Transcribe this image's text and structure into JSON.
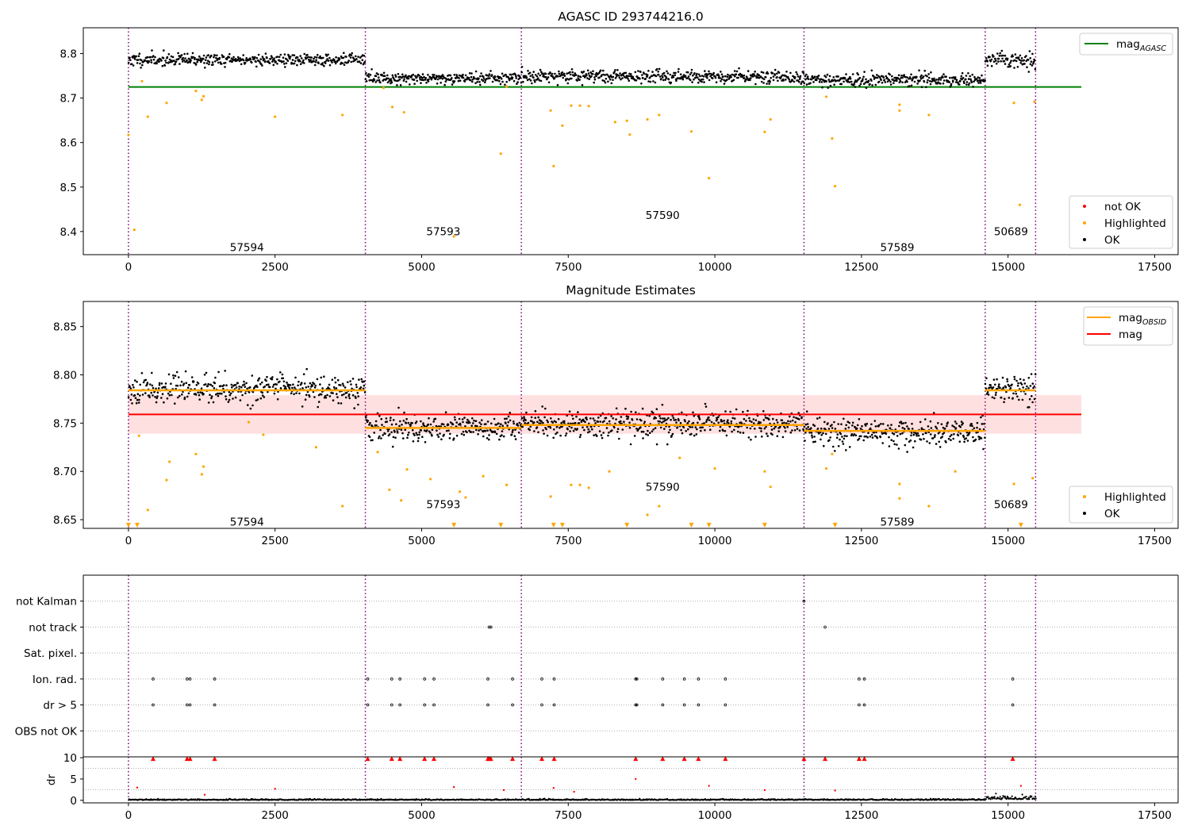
{
  "chart_data": [
    {
      "type": "scatter",
      "title": "AGASC ID 293744216.0",
      "xlabel": "",
      "ylabel": "",
      "xlim": [
        -770,
        17900
      ],
      "ylim": [
        8.348,
        8.858
      ],
      "xticks": [
        0,
        2500,
        5000,
        7500,
        10000,
        12500,
        15000,
        17500
      ],
      "yticks": [
        8.4,
        8.5,
        8.6,
        8.7,
        8.8
      ],
      "vlines": [
        0,
        4040,
        6700,
        11520,
        14610,
        15470
      ],
      "reference_lines": [
        {
          "name": "mag_AGASC",
          "y": 8.725,
          "x_range": [
            0,
            16250
          ],
          "color": "#008000"
        }
      ],
      "observations": [
        {
          "obsid": "57594",
          "x_range": [
            0,
            4040
          ],
          "mean": 8.786,
          "spread": 0.007
        },
        {
          "obsid": "57593",
          "x_range": [
            4040,
            6700
          ],
          "mean": 8.745,
          "spread": 0.007
        },
        {
          "obsid": "57590",
          "x_range": [
            6700,
            11520
          ],
          "mean": 8.749,
          "spread": 0.007
        },
        {
          "obsid": "57589",
          "x_range": [
            11520,
            14610
          ],
          "mean": 8.741,
          "spread": 0.007
        },
        {
          "obsid": "50689",
          "x_range": [
            14610,
            15470
          ],
          "mean": 8.786,
          "spread": 0.009
        }
      ],
      "obs_labels": [
        {
          "text": "57594",
          "x": 2020,
          "y": 8.365
        },
        {
          "text": "57593",
          "x": 5370,
          "y": 8.401
        },
        {
          "text": "57590",
          "x": 9110,
          "y": 8.437
        },
        {
          "text": "57589",
          "x": 13110,
          "y": 8.365
        },
        {
          "text": "50689",
          "x": 15050,
          "y": 8.401
        }
      ],
      "highlighted_points": [
        [
          0,
          8.617
        ],
        [
          100,
          8.404
        ],
        [
          230,
          8.738
        ],
        [
          330,
          8.658
        ],
        [
          650,
          8.689
        ],
        [
          1150,
          8.716
        ],
        [
          1250,
          8.696
        ],
        [
          1280,
          8.704
        ],
        [
          2500,
          8.658
        ],
        [
          3650,
          8.662
        ],
        [
          4350,
          8.723
        ],
        [
          4500,
          8.68
        ],
        [
          4700,
          8.668
        ],
        [
          5550,
          8.389
        ],
        [
          6350,
          8.575
        ],
        [
          6450,
          8.726
        ],
        [
          7200,
          8.672
        ],
        [
          7250,
          8.547
        ],
        [
          7400,
          8.638
        ],
        [
          7550,
          8.683
        ],
        [
          7700,
          8.683
        ],
        [
          7850,
          8.682
        ],
        [
          8300,
          8.646
        ],
        [
          8500,
          8.649
        ],
        [
          8550,
          8.618
        ],
        [
          8850,
          8.652
        ],
        [
          9050,
          8.662
        ],
        [
          9600,
          8.625
        ],
        [
          9900,
          8.52
        ],
        [
          10850,
          8.624
        ],
        [
          10950,
          8.652
        ],
        [
          11900,
          8.703
        ],
        [
          12000,
          8.609
        ],
        [
          12050,
          8.502
        ],
        [
          13150,
          8.685
        ],
        [
          13150,
          8.672
        ],
        [
          13650,
          8.662
        ],
        [
          15100,
          8.689
        ],
        [
          15200,
          8.46
        ],
        [
          15450,
          8.692
        ]
      ],
      "legend": [
        {
          "label": "mag",
          "subscript": "AGASC",
          "color": "#008000",
          "kind": "line"
        },
        {
          "label": "not OK",
          "color": "#ff0000",
          "kind": "point"
        },
        {
          "label": "Highlighted",
          "color": "#ffa500",
          "kind": "point"
        },
        {
          "label": "OK",
          "color": "#000000",
          "kind": "point"
        }
      ]
    },
    {
      "type": "scatter",
      "title": "Magnitude Estimates",
      "xlabel": "",
      "ylabel": "",
      "xlim": [
        -770,
        17900
      ],
      "ylim": [
        8.641,
        8.876
      ],
      "xticks": [
        0,
        2500,
        5000,
        7500,
        10000,
        12500,
        15000,
        17500
      ],
      "yticks": [
        8.65,
        8.7,
        8.75,
        8.8,
        8.85
      ],
      "vlines": [
        0,
        4040,
        6700,
        11520,
        14610,
        15470
      ],
      "reference_lines": [
        {
          "name": "mag",
          "y": 8.759,
          "x_range": [
            0,
            16250
          ],
          "color": "#ff0000",
          "band": [
            8.739,
            8.779
          ]
        }
      ],
      "observations": [
        {
          "obsid": "57594",
          "x_range": [
            0,
            4040
          ],
          "mean": 8.786,
          "spread": 0.007,
          "mag_obsid": 8.784
        },
        {
          "obsid": "57593",
          "x_range": [
            4040,
            6700
          ],
          "mean": 8.745,
          "spread": 0.007,
          "mag_obsid": 8.745
        },
        {
          "obsid": "57590",
          "x_range": [
            6700,
            11520
          ],
          "mean": 8.749,
          "spread": 0.007,
          "mag_obsid": 8.748
        },
        {
          "obsid": "57589",
          "x_range": [
            11520,
            14610
          ],
          "mean": 8.741,
          "spread": 0.007,
          "mag_obsid": 8.742
        },
        {
          "obsid": "50689",
          "x_range": [
            14610,
            15470
          ],
          "mean": 8.786,
          "spread": 0.009,
          "mag_obsid": 8.784
        }
      ],
      "obs_labels": [
        {
          "text": "57594",
          "x": 2020,
          "y": 8.648
        },
        {
          "text": "57593",
          "x": 5370,
          "y": 8.666
        },
        {
          "text": "57590",
          "x": 9110,
          "y": 8.684
        },
        {
          "text": "57589",
          "x": 13110,
          "y": 8.648
        },
        {
          "text": "50689",
          "x": 15050,
          "y": 8.666
        }
      ],
      "highlighted_points": [
        [
          180,
          8.737
        ],
        [
          330,
          8.66
        ],
        [
          650,
          8.691
        ],
        [
          700,
          8.71
        ],
        [
          1150,
          8.718
        ],
        [
          1250,
          8.697
        ],
        [
          1280,
          8.705
        ],
        [
          2050,
          8.751
        ],
        [
          2300,
          8.738
        ],
        [
          3200,
          8.725
        ],
        [
          3650,
          8.664
        ],
        [
          4250,
          8.72
        ],
        [
          4450,
          8.681
        ],
        [
          4650,
          8.67
        ],
        [
          4750,
          8.702
        ],
        [
          5150,
          8.692
        ],
        [
          5650,
          8.679
        ],
        [
          5750,
          8.673
        ],
        [
          6050,
          8.695
        ],
        [
          6450,
          8.686
        ],
        [
          7200,
          8.674
        ],
        [
          7550,
          8.686
        ],
        [
          7700,
          8.686
        ],
        [
          7850,
          8.683
        ],
        [
          8200,
          8.7
        ],
        [
          8850,
          8.655
        ],
        [
          9050,
          8.664
        ],
        [
          9400,
          8.714
        ],
        [
          10000,
          8.703
        ],
        [
          10850,
          8.7
        ],
        [
          10950,
          8.684
        ],
        [
          11900,
          8.703
        ],
        [
          12000,
          8.718
        ],
        [
          13150,
          8.687
        ],
        [
          13150,
          8.672
        ],
        [
          13650,
          8.664
        ],
        [
          14100,
          8.7
        ],
        [
          15100,
          8.687
        ],
        [
          15420,
          8.693
        ]
      ],
      "clipped_markers_x": [
        0,
        150,
        5550,
        6350,
        7250,
        7400,
        8500,
        9600,
        9900,
        10850,
        12050,
        15220
      ],
      "legend": [
        {
          "label": "mag",
          "subscript": "OBSID",
          "color": "#ffa500",
          "kind": "line"
        },
        {
          "label": "mag",
          "color": "#ff0000",
          "kind": "line"
        },
        {
          "label": "Highlighted",
          "color": "#ffa500",
          "kind": "point"
        },
        {
          "label": "OK",
          "color": "#000000",
          "kind": "point"
        }
      ]
    },
    {
      "type": "scatter",
      "title": "",
      "xlabel": "",
      "ylabel": "",
      "xlim": [
        -770,
        17900
      ],
      "ylim": [
        0,
        7
      ],
      "yticks": [
        "OBS not OK",
        "dr > 5",
        "Ion. rad.",
        "Sat. pixel.",
        "not track",
        "not Kalman"
      ],
      "vlines": [
        0,
        4040,
        6700,
        11520,
        14610,
        15470
      ],
      "flag_events": {
        "dr > 5": [
          420,
          1000,
          1050,
          1470,
          4080,
          4490,
          4630,
          5050,
          5210,
          6130,
          6550,
          7050,
          7260,
          8650,
          8670,
          9110,
          9480,
          9720,
          10180,
          12460,
          12550,
          15080
        ],
        "Ion. rad.": [
          420,
          1000,
          1050,
          1470,
          4080,
          4490,
          4630,
          5050,
          5210,
          6130,
          6550,
          7050,
          7260,
          8650,
          8670,
          9110,
          9480,
          9720,
          10180,
          12460,
          12550,
          15080
        ],
        "not track": [
          6150,
          6180,
          11880
        ],
        "not Kalman": [
          11520
        ]
      }
    },
    {
      "type": "scatter",
      "title": "",
      "xlabel": "",
      "ylabel": "dr",
      "xlim": [
        -770,
        17900
      ],
      "ylim": [
        -0.6,
        10.2
      ],
      "xticks": [
        0,
        2500,
        5000,
        7500,
        10000,
        12500,
        15000,
        17500
      ],
      "yticks": [
        0,
        5,
        10
      ],
      "vlines": [
        0,
        4040,
        6700,
        11520,
        14610,
        15470
      ],
      "clipped_markers_x": [
        420,
        1000,
        1050,
        1470,
        4080,
        4490,
        4630,
        5050,
        5210,
        6130,
        6150,
        6180,
        6550,
        7050,
        7260,
        8650,
        9110,
        9480,
        9720,
        10180,
        11520,
        11880,
        12460,
        12550,
        15080
      ],
      "outlier_points": [
        [
          150,
          3.0
        ],
        [
          1300,
          1.3
        ],
        [
          2500,
          2.7
        ],
        [
          5550,
          3.1
        ],
        [
          6400,
          2.4
        ],
        [
          7250,
          2.9
        ],
        [
          7600,
          2.0
        ],
        [
          8650,
          5.0
        ],
        [
          9900,
          3.4
        ],
        [
          10850,
          2.4
        ],
        [
          12050,
          2.3
        ],
        [
          15220,
          3.4
        ]
      ]
    }
  ]
}
